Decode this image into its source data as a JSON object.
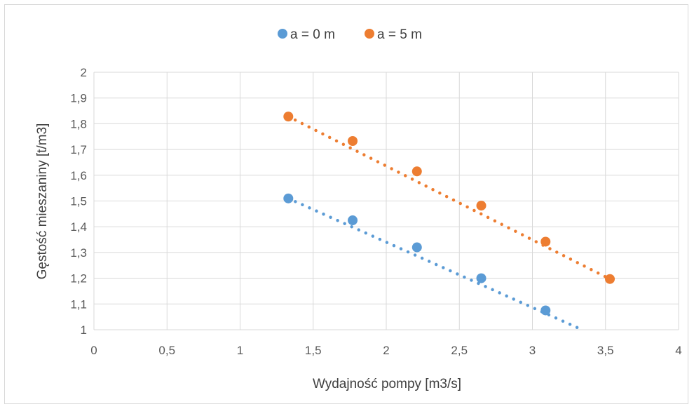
{
  "chart_data": {
    "type": "scatter",
    "xlabel": "Wydajność pompy [m3/s]",
    "ylabel": "Gęstość mieszaniny [t/m3]",
    "xlim": [
      0,
      4
    ],
    "ylim": [
      1,
      2
    ],
    "x_ticks": [
      "0",
      "0,5",
      "1",
      "1,5",
      "2",
      "2,5",
      "3",
      "3,5",
      "4"
    ],
    "y_ticks": [
      "1",
      "1,1",
      "1,2",
      "1,3",
      "1,4",
      "1,5",
      "1,6",
      "1,7",
      "1,8",
      "1,9",
      "2"
    ],
    "grid": true,
    "legend_position": "top-center",
    "trendline": "linear, dotted",
    "series": [
      {
        "name": "a = 0 m",
        "color": "#5b9bd5",
        "points": [
          [
            1.33,
            1.51
          ],
          [
            1.77,
            1.425
          ],
          [
            2.21,
            1.32
          ],
          [
            2.65,
            1.2
          ],
          [
            3.09,
            1.075
          ]
        ],
        "trend": [
          [
            1.33,
            1.51
          ],
          [
            3.34,
            1.0
          ]
        ]
      },
      {
        "name": "a = 5 m",
        "color": "#ed7d31",
        "points": [
          [
            1.33,
            1.828
          ],
          [
            1.77,
            1.733
          ],
          [
            2.21,
            1.615
          ],
          [
            2.65,
            1.482
          ],
          [
            3.09,
            1.342
          ],
          [
            3.53,
            1.197
          ]
        ],
        "trend": [
          [
            1.33,
            1.828
          ],
          [
            3.53,
            1.197
          ]
        ]
      }
    ]
  }
}
